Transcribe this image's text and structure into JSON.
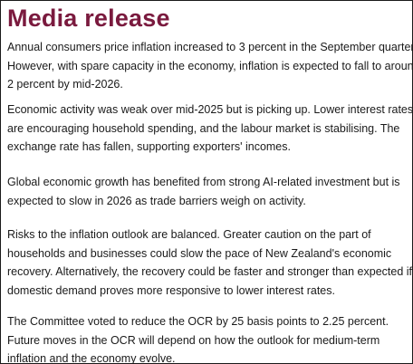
{
  "title": "Media release",
  "paragraphs": [
    {
      "lines": [
        "Annual consumers price inflation increased to 3 percent in the September quarter.",
        "However, with spare capacity in the economy, inflation is expected to fall to around",
        "2 percent by mid-2026."
      ]
    },
    {
      "lines": [
        "Economic activity was weak over mid-2025 but is picking up. Lower interest rates",
        "are encouraging household spending, and the labour market is stabilising. The",
        "exchange rate has fallen, supporting exporters' incomes."
      ]
    },
    {
      "lines": [
        "Global economic growth has benefited from strong AI-related investment but is",
        "expected to slow in 2026 as trade barriers weigh on activity."
      ]
    },
    {
      "lines": [
        "Risks to the inflation outlook are balanced. Greater caution on the part of",
        "households and businesses could slow the pace of New Zealand's economic",
        "recovery. Alternatively, the recovery could be faster and stronger than expected if",
        "domestic demand proves more responsive to lower interest rates."
      ]
    },
    {
      "lines": [
        "The Committee voted to reduce the OCR by 25 basis points to 2.25 percent.",
        "Future moves in the OCR will depend on how the outlook for medium-term",
        "inflation and the economy evolve."
      ]
    }
  ],
  "colors": {
    "title": "#7a1a3e",
    "body_text": "#1a1a1a",
    "border": "#1a1a1a",
    "background": "#ffffff"
  }
}
